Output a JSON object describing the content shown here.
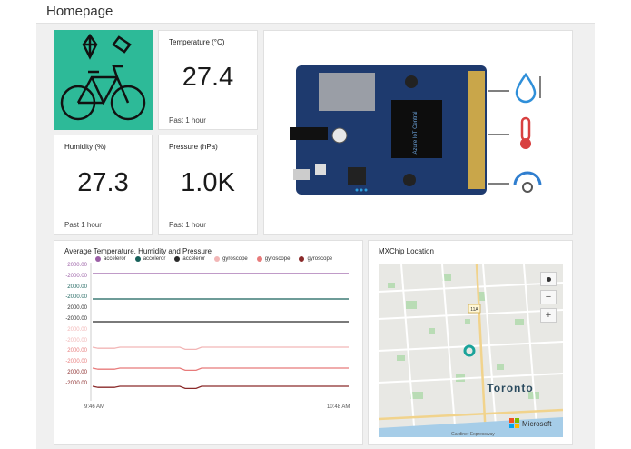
{
  "header": {
    "title": "Homepage"
  },
  "tiles": {
    "temperature": {
      "title": "Temperature (°C)",
      "value": "27.4",
      "foot": "Past 1 hour"
    },
    "humidity": {
      "title": "Humidity (%)",
      "value": "27.3",
      "foot": "Past 1 hour"
    },
    "pressure": {
      "title": "Pressure (hPa)",
      "value": "1.0K",
      "foot": "Past 1 hour"
    }
  },
  "chart": {
    "title": "Average Temperature, Humidity and Pressure",
    "legend": [
      {
        "name": "acceleror",
        "color": "#9b5fa6"
      },
      {
        "name": "acceleror",
        "color": "#17605a"
      },
      {
        "name": "acceleror",
        "color": "#2b2b2b"
      },
      {
        "name": "gyroscope",
        "color": "#f2b6b6"
      },
      {
        "name": "gyroscope",
        "color": "#e87b7b"
      },
      {
        "name": "gyroscope",
        "color": "#8a2a2a"
      }
    ],
    "ticks": [
      {
        "label": "2000.00",
        "color": "#9b5fa6"
      },
      {
        "label": "-2000.00",
        "color": "#9b5fa6"
      },
      {
        "label": "2000.00",
        "color": "#17605a"
      },
      {
        "label": "-2000.00",
        "color": "#17605a"
      },
      {
        "label": "2000.00",
        "color": "#2b2b2b"
      },
      {
        "label": "-2000.00",
        "color": "#2b2b2b"
      },
      {
        "label": "2000.00",
        "color": "#f2b6b6"
      },
      {
        "label": "-2000.00",
        "color": "#f2b6b6"
      },
      {
        "label": "2000.00",
        "color": "#e87b7b"
      },
      {
        "label": "-2000.00",
        "color": "#e87b7b"
      },
      {
        "label": "2000.00",
        "color": "#8a2a2a"
      },
      {
        "label": "-2000.00",
        "color": "#8a2a2a"
      }
    ],
    "x_start": "9:46 AM",
    "x_end": "10:48 AM"
  },
  "map": {
    "title": "MXChip Location",
    "city": "Toronto",
    "route": "11A",
    "road": "Gardiner Expressway",
    "brand": "Microsoft",
    "zoom_in": "+",
    "zoom_out": "−"
  }
}
